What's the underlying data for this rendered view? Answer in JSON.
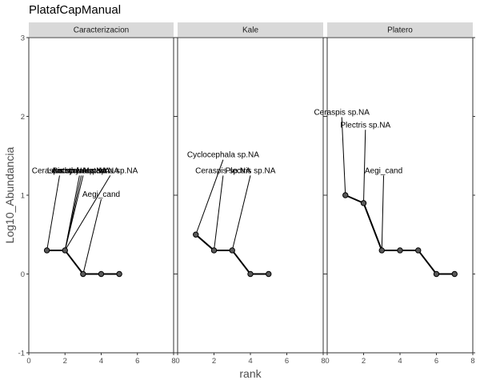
{
  "chart_data": {
    "type": "line",
    "title": "PlatafCapManual",
    "xlabel": "rank",
    "ylabel": "Log10_Abundancia",
    "xlim": [
      0,
      8
    ],
    "ylim": [
      -1,
      3
    ],
    "x_ticks": [
      0,
      2,
      4,
      6,
      8
    ],
    "y_ticks": [
      -1,
      0,
      1,
      2,
      3
    ],
    "grid": false,
    "facets": [
      {
        "name": "Caracterizacion",
        "points": [
          {
            "x": 1,
            "y": 0.3
          },
          {
            "x": 2,
            "y": 0.3
          },
          {
            "x": 3,
            "y": 0.0
          },
          {
            "x": 4,
            "y": 0.0
          },
          {
            "x": 5,
            "y": 0.0
          }
        ],
        "labels": [
          {
            "text": "Ceraspis sp.NA",
            "x": 1,
            "y": 0.3,
            "lx": 1.7,
            "ly": 1.28
          },
          {
            "text": "Anomala sp.NA",
            "x": 2,
            "y": 0.3,
            "lx": 2.8,
            "ly": 1.28
          },
          {
            "text": "Bothynus sp.NA",
            "x": 2,
            "y": 0.3,
            "lx": 2.9,
            "ly": 1.28
          },
          {
            "text": "Leucothyreus sp.NA",
            "x": 2,
            "y": 0.3,
            "lx": 3.0,
            "ly": 1.28
          },
          {
            "text": "Mataena sp.NA",
            "x": 2,
            "y": 0.3,
            "lx": 4.5,
            "ly": 1.28
          },
          {
            "text": "Aegi_cand",
            "x": 3,
            "y": 0.0,
            "lx": 4.0,
            "ly": 0.98
          }
        ]
      },
      {
        "name": "Kale",
        "points": [
          {
            "x": 1,
            "y": 0.5
          },
          {
            "x": 2,
            "y": 0.3
          },
          {
            "x": 3,
            "y": 0.3
          },
          {
            "x": 4,
            "y": 0.0
          },
          {
            "x": 5,
            "y": 0.0
          }
        ],
        "labels": [
          {
            "text": "Cyclocephala sp.NA",
            "x": 1,
            "y": 0.5,
            "lx": 2.5,
            "ly": 1.48
          },
          {
            "text": "Ceraspis sp.NA",
            "x": 2,
            "y": 0.3,
            "lx": 2.5,
            "ly": 1.28
          },
          {
            "text": "Plectris sp.NA",
            "x": 3,
            "y": 0.3,
            "lx": 4.0,
            "ly": 1.28
          }
        ]
      },
      {
        "name": "Platero",
        "points": [
          {
            "x": 1,
            "y": 1.0
          },
          {
            "x": 2,
            "y": 0.9
          },
          {
            "x": 3,
            "y": 0.3
          },
          {
            "x": 4,
            "y": 0.3
          },
          {
            "x": 5,
            "y": 0.3
          },
          {
            "x": 6,
            "y": 0.0
          },
          {
            "x": 7,
            "y": 0.0
          }
        ],
        "labels": [
          {
            "text": "Ceraspis sp.NA",
            "x": 1,
            "y": 1.0,
            "lx": 0.8,
            "ly": 2.02
          },
          {
            "text": "Plectris sp.NA",
            "x": 2,
            "y": 0.9,
            "lx": 2.1,
            "ly": 1.86
          },
          {
            "text": "Aegi_cand",
            "x": 3,
            "y": 0.3,
            "lx": 3.1,
            "ly": 1.28
          }
        ]
      }
    ]
  }
}
